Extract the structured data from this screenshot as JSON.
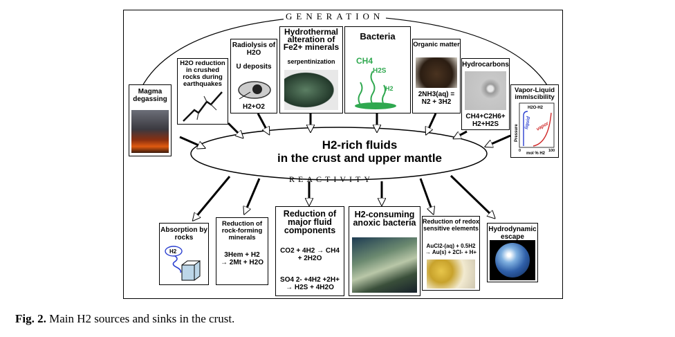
{
  "labels": {
    "generation": "GENERATION",
    "reactivity": "REACTIVITY",
    "center_line1": "H2-rich fluids",
    "center_line2": "in the crust and upper mantle"
  },
  "sources": {
    "magma": "Magma degassing",
    "h2o_reduction": "H2O reduction in crushed rocks during earthquakes",
    "radiolysis": "Radiolysis of H2O",
    "radiolysis_deposit": "U deposits",
    "radiolysis_formula": "H2+O2",
    "hydrothermal": "Hydrothermal alteration of Fe2+ minerals",
    "hydrothermal_sub": "serpentinization",
    "bacteria": "Bacteria",
    "bacteria_ch4": "CH4",
    "bacteria_h2s": "H2S",
    "bacteria_h2": "H2",
    "organic": "Organic matter",
    "organic_formula": "2NH3(aq) = N2 + 3H2",
    "hydrocarbons": "Hydrocarbons",
    "hydrocarbons_formula": "CH4+C2H6+ H2+H2S",
    "vli": "Vapor-Liquid immiscibility",
    "vli_plot_title": "H2O-H2",
    "vli_liquid": "liquid",
    "vli_vapor": "vapor",
    "vli_ylabel": "Pressure",
    "vli_xlabel": "mol % H2",
    "vli_x0": "0",
    "vli_x100": "100"
  },
  "sinks": {
    "absorption": "Absorption by rocks",
    "absorption_h2": "H2",
    "rock_minerals": "Reduction of rock-forming minerals",
    "rock_formula": "3Hem + H2 → 2Mt + H2O",
    "fluid": "Reduction of major fluid components",
    "fluid_formula1": "CO2 + 4H2 → CH4 + 2H2O",
    "fluid_formula2": "SO4 2- +4H2 +2H+ → H2S + 4H2O",
    "anoxic": "H2-consuming anoxic bacteria",
    "redox": "Reduction of redox sensitive elements",
    "redox_formula": "AuCl2-(aq) + 0.5H2 → Au(s) + 2Cl- + H+",
    "escape": "Hydrodynamic escape"
  },
  "caption": {
    "label": "Fig. 2.",
    "text": "Main H2 sources and sinks in the crust."
  },
  "colors": {
    "bacteria_green": "#2fa84f",
    "liquid_blue": "#2a3fd0",
    "vapor_red": "#d02a2a"
  }
}
